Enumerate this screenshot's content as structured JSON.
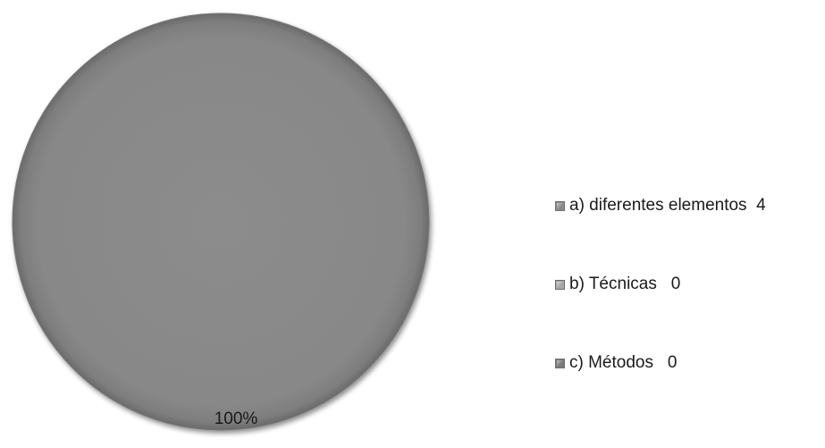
{
  "chart_data": {
    "type": "pie",
    "title": "",
    "categories": [
      "a) diferentes elementos",
      "b) Técnicas",
      "c) Métodos"
    ],
    "values": [
      4,
      0,
      0
    ],
    "data_labels": [
      "100%"
    ],
    "legend_placement": "right",
    "colors": [
      "#8a8a8a",
      "#a6a6a6",
      "#7a7a7a"
    ]
  },
  "legend": {
    "items": [
      {
        "label": "a) diferentes elementos",
        "value": "4",
        "color": "#8a8a8a"
      },
      {
        "label": "b) Técnicas",
        "value": "0",
        "color": "#a6a6a6"
      },
      {
        "label": "c) Métodos",
        "value": "0",
        "color": "#7a7a7a"
      }
    ]
  }
}
